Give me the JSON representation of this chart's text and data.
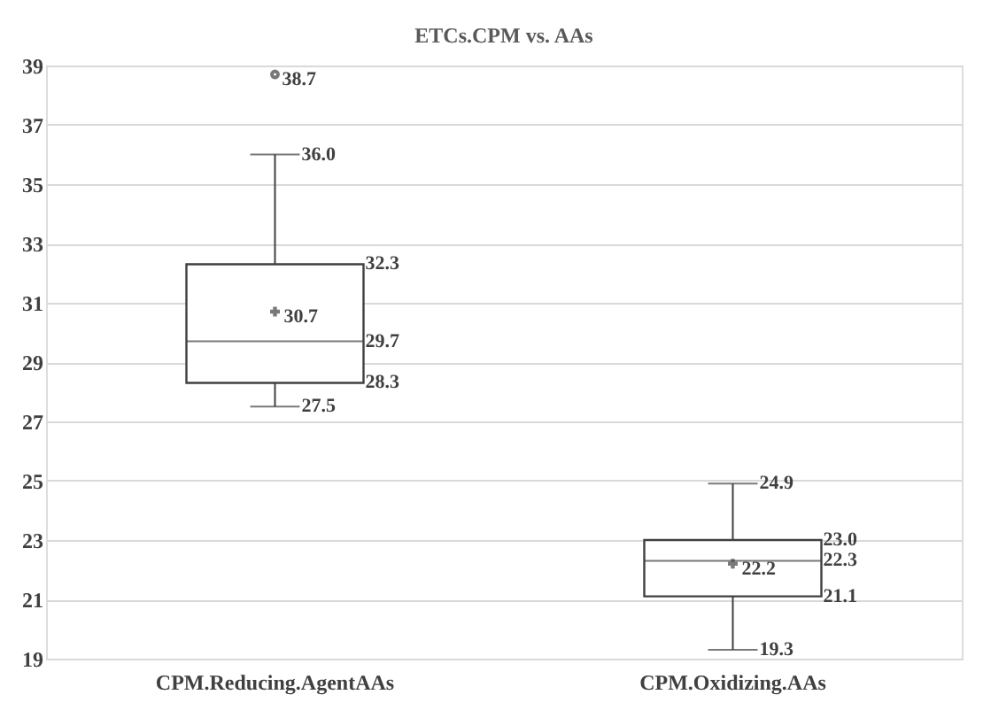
{
  "chart_data": {
    "type": "box",
    "title": "ETCs.CPM vs. AAs",
    "categories": [
      "CPM.Reducing.AgentAAs",
      "CPM.Oxidizing.AAs"
    ],
    "series": [
      {
        "color": "#404040",
        "boxes": [
          {
            "low": 27.5,
            "q1": 28.3,
            "median": 29.7,
            "q3": 32.3,
            "high": 36.0,
            "mean": 30.7,
            "outliers": [
              38.7
            ]
          },
          {
            "low": 19.3,
            "q1": 21.1,
            "median": 22.3,
            "q3": 23.0,
            "high": 24.9,
            "mean": 22.2
          }
        ]
      }
    ],
    "data_labels": true,
    "annotations": [
      "38.7",
      "36.0",
      "32.3",
      "30.7",
      "29.7",
      "28.3",
      "27.5",
      "24.9",
      "23.0",
      "22.2",
      "22.3",
      "21.1",
      "19.3"
    ],
    "ylim": [
      19,
      39
    ],
    "yticks": [
      19,
      21,
      23,
      25,
      27,
      29,
      31,
      33,
      35,
      37,
      39
    ],
    "grid": "y",
    "marker": "cross"
  }
}
